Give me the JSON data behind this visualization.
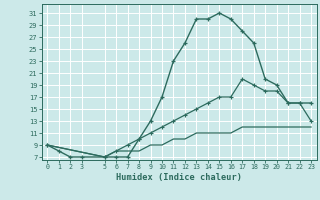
{
  "xlabel": "Humidex (Indice chaleur)",
  "bg_color": "#cce9e9",
  "grid_color": "#ffffff",
  "line_color": "#2d6b5e",
  "xlim": [
    -0.5,
    23.5
  ],
  "ylim": [
    6.5,
    32.5
  ],
  "xticks": [
    0,
    1,
    2,
    3,
    5,
    6,
    7,
    8,
    9,
    10,
    11,
    12,
    13,
    14,
    15,
    16,
    17,
    18,
    19,
    20,
    21,
    22,
    23
  ],
  "xtick_labels": [
    "0",
    "1",
    "2",
    "3",
    "5",
    "6",
    "7",
    "8",
    "9",
    "10",
    "11",
    "12",
    "13",
    "14",
    "15",
    "16",
    "17",
    "18",
    "19",
    "20",
    "21",
    "22",
    "23"
  ],
  "yticks": [
    7,
    9,
    11,
    13,
    15,
    17,
    19,
    21,
    23,
    25,
    27,
    29,
    31
  ],
  "curve1_x": [
    0,
    1,
    2,
    3,
    5,
    6,
    7,
    8,
    9,
    10,
    11,
    12,
    13,
    14,
    15,
    16,
    17,
    18,
    19,
    20,
    21,
    22,
    23
  ],
  "curve1_y": [
    9,
    8,
    7,
    7,
    7,
    7,
    7,
    10,
    13,
    17,
    23,
    26,
    30,
    30,
    31,
    30,
    28,
    26,
    20,
    19,
    16,
    16,
    16
  ],
  "curve2_x": [
    0,
    5,
    6,
    7,
    8,
    9,
    10,
    11,
    12,
    13,
    14,
    15,
    16,
    17,
    18,
    19,
    20,
    21,
    22,
    23
  ],
  "curve2_y": [
    9,
    7,
    8,
    9,
    10,
    11,
    12,
    13,
    14,
    15,
    16,
    17,
    17,
    20,
    19,
    18,
    18,
    16,
    16,
    13
  ],
  "curve3_x": [
    0,
    5,
    6,
    7,
    8,
    9,
    10,
    11,
    12,
    13,
    14,
    15,
    16,
    17,
    18,
    19,
    20,
    21,
    22,
    23
  ],
  "curve3_y": [
    9,
    7,
    8,
    8,
    8,
    9,
    9,
    10,
    10,
    11,
    11,
    11,
    11,
    12,
    12,
    12,
    12,
    12,
    12,
    12
  ]
}
